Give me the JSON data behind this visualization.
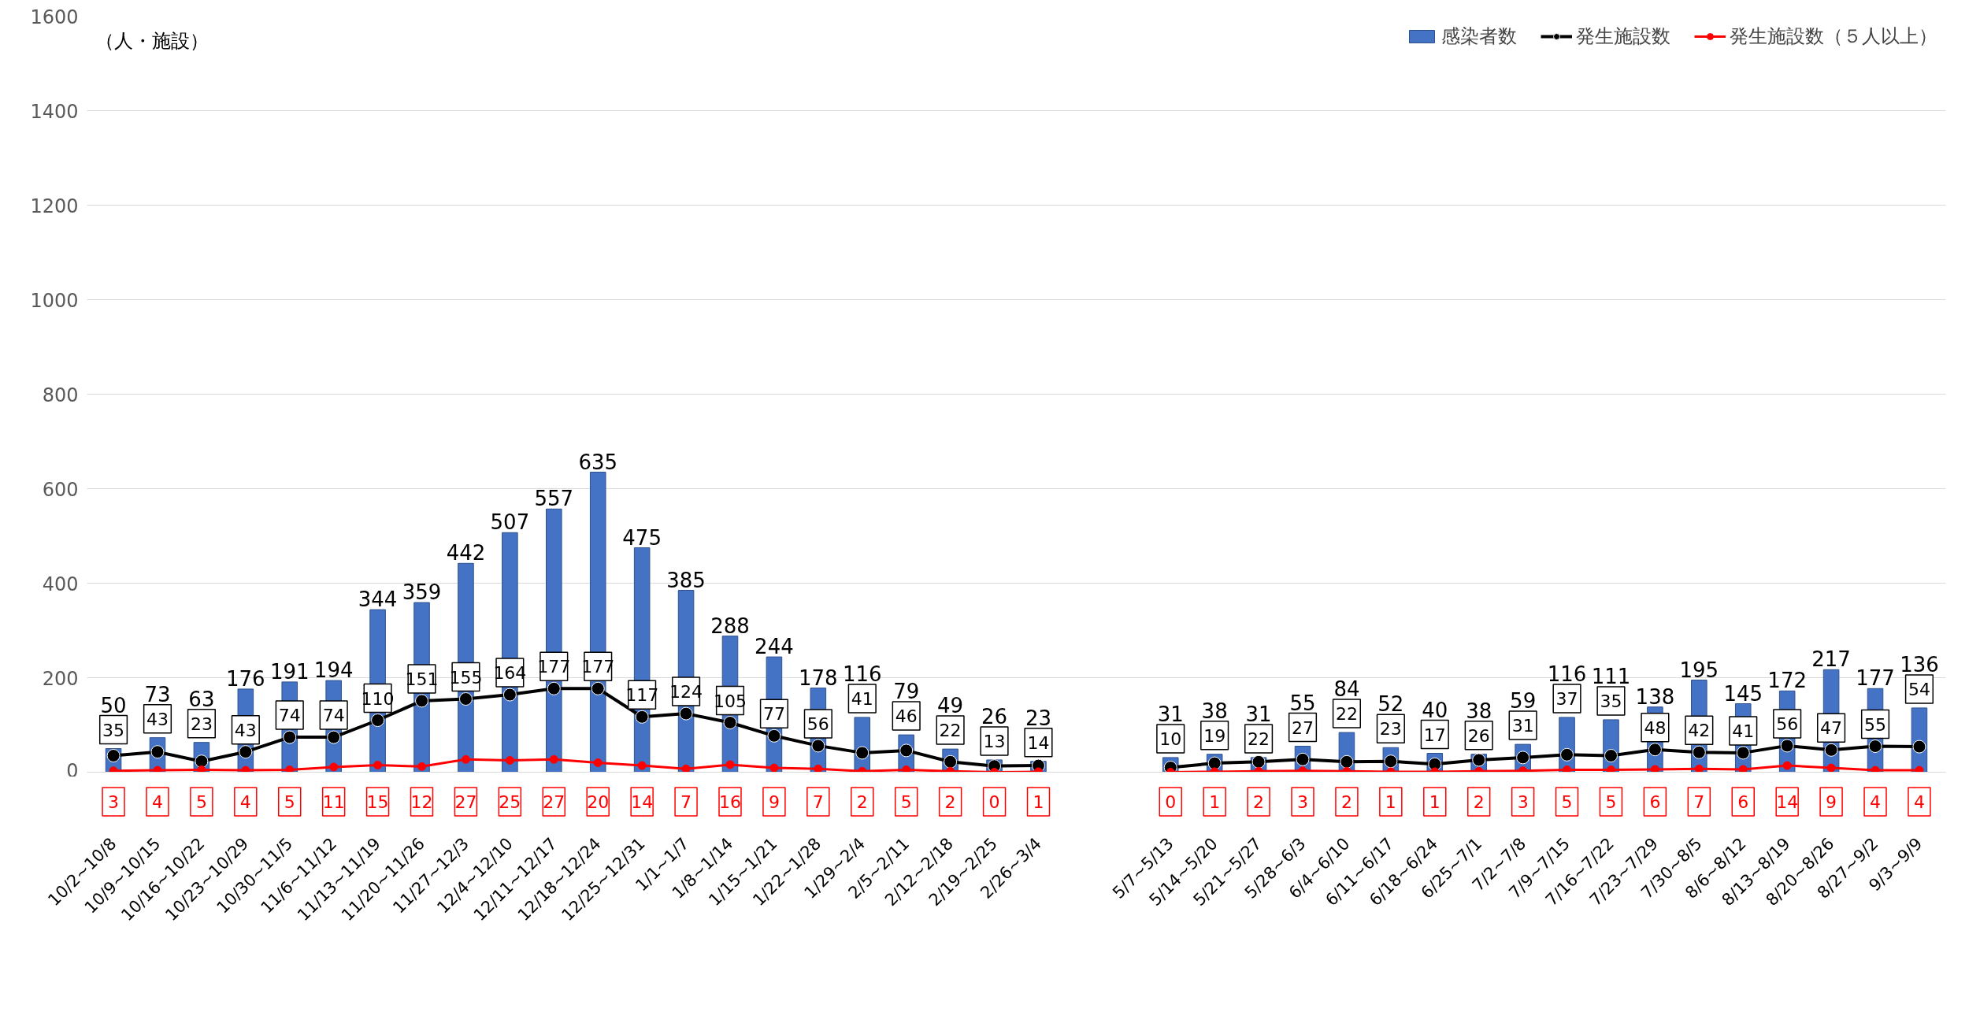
{
  "chart_data": {
    "type": "bar",
    "ylabel": "（人・施設）",
    "categories": [
      "10/2~10/8",
      "10/9~10/15",
      "10/16~10/22",
      "10/23~10/29",
      "10/30~11/5",
      "11/6~11/12",
      "11/13~11/19",
      "11/20~11/26",
      "11/27~12/3",
      "12/4~12/10",
      "12/11~12/17",
      "12/18~12/24",
      "12/25~12/31",
      "1/1~1/7",
      "1/8~1/14",
      "1/15~1/21",
      "1/22~1/28",
      "1/29~2/4",
      "2/5~2/11",
      "2/12~2/18",
      "2/19~2/25",
      "2/26~3/4",
      null,
      null,
      "5/7~5/13",
      "5/14~5/20",
      "5/21~5/27",
      "5/28~6/3",
      "6/4~6/10",
      "6/11~6/17",
      "6/18~6/24",
      "6/25~7/1",
      "7/2~7/8",
      "7/9~7/15",
      "7/16~7/22",
      "7/23~7/29",
      "7/30~8/5",
      "8/6~8/12",
      "8/13~8/19",
      "8/20~8/26",
      "8/27~9/2",
      "9/3~9/9"
    ],
    "series": [
      {
        "name": "感染者数",
        "color": "#4472c4",
        "values": [
          50,
          73,
          63,
          176,
          191,
          194,
          344,
          359,
          442,
          507,
          557,
          635,
          475,
          385,
          288,
          244,
          178,
          116,
          79,
          49,
          26,
          23,
          null,
          null,
          31,
          38,
          31,
          55,
          84,
          52,
          40,
          38,
          59,
          116,
          111,
          138,
          195,
          145,
          172,
          217,
          177,
          136
        ]
      },
      {
        "name": "発生施設数",
        "type": "line",
        "color": "#000000",
        "values": [
          35,
          43,
          23,
          43,
          74,
          74,
          110,
          151,
          155,
          164,
          177,
          177,
          117,
          124,
          105,
          77,
          56,
          41,
          46,
          22,
          13,
          14,
          null,
          null,
          10,
          19,
          22,
          27,
          22,
          23,
          17,
          26,
          31,
          37,
          35,
          48,
          42,
          41,
          56,
          47,
          55,
          54
        ]
      },
      {
        "name": "発生施設数（５人以上）",
        "type": "line",
        "color": "#ff0000",
        "values": [
          3,
          4,
          5,
          4,
          5,
          11,
          15,
          12,
          27,
          25,
          27,
          20,
          14,
          7,
          16,
          9,
          7,
          2,
          5,
          2,
          0,
          1,
          null,
          null,
          0,
          1,
          2,
          3,
          2,
          1,
          1,
          2,
          3,
          5,
          5,
          6,
          7,
          6,
          14,
          9,
          4,
          4
        ]
      }
    ],
    "ylim": [
      0,
      1600
    ],
    "yticks": [
      0,
      200,
      400,
      600,
      800,
      1000,
      1200,
      1400,
      1600
    ],
    "grid": "y",
    "legend": "top right",
    "marker": "circle",
    "data_labels": true
  }
}
